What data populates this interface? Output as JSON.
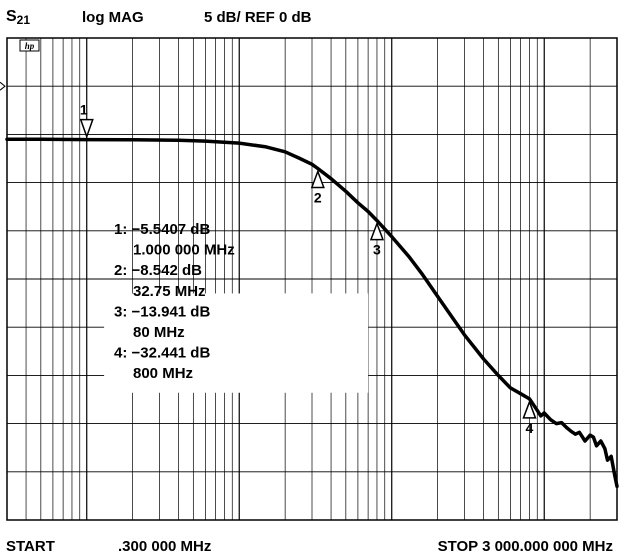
{
  "header": {
    "channel_main": "S",
    "channel_sub": "21",
    "format": "log MAG",
    "scale": "5 dB/  REF 0 dB",
    "instrument_logo": "hp"
  },
  "footer": {
    "start_label": "START",
    "start_freq": ".300 000 MHz",
    "stop": "STOP 3 000.000 000 MHz"
  },
  "chart_data": {
    "type": "line",
    "title": "",
    "xlabel": "",
    "ylabel": "",
    "x_scale": "log",
    "x_unit": "MHz",
    "y_unit": "dB",
    "xlim": [
      0.3,
      3000
    ],
    "ylim": [
      -45,
      5
    ],
    "reference_db": 0,
    "db_per_div": 5,
    "grid": true,
    "series": [
      {
        "x": [
          0.3,
          0.5,
          1,
          2,
          4,
          6,
          10,
          15,
          20,
          25,
          30,
          32.75,
          40,
          50,
          60,
          70,
          80,
          100,
          130,
          160,
          200,
          250,
          300,
          400,
          500,
          600,
          700,
          800,
          880,
          950,
          1000,
          1100,
          1200,
          1300,
          1400,
          1500,
          1600,
          1700,
          1850,
          2000,
          2100,
          2200,
          2350,
          2500,
          2600,
          2750,
          2900,
          3000
        ],
        "y": [
          -5.5,
          -5.5,
          -5.54,
          -5.56,
          -5.6,
          -5.7,
          -5.9,
          -6.3,
          -6.8,
          -7.5,
          -8.1,
          -8.54,
          -9.6,
          -10.9,
          -12.1,
          -13.0,
          -13.94,
          -15.6,
          -17.7,
          -19.6,
          -21.8,
          -24.0,
          -25.8,
          -28.3,
          -30.0,
          -31.3,
          -31.9,
          -32.44,
          -33.4,
          -34.2,
          -33.9,
          -34.6,
          -35.0,
          -34.9,
          -35.4,
          -35.8,
          -36.1,
          -35.9,
          -36.8,
          -36.2,
          -36.4,
          -37.3,
          -36.8,
          -37.6,
          -38.8,
          -38.4,
          -40.4,
          -41.5
        ]
      }
    ],
    "markers": [
      {
        "id": "1",
        "freq_mhz": 1.0,
        "db": -5.5407,
        "pointer": "down",
        "line1": "1: −5.5407 dB",
        "line2": "1.000 000 MHz"
      },
      {
        "id": "2",
        "freq_mhz": 32.75,
        "db": -8.542,
        "pointer": "up",
        "line1": "2: −8.542 dB",
        "line2": "32.75 MHz"
      },
      {
        "id": "3",
        "freq_mhz": 80,
        "db": -13.941,
        "pointer": "up",
        "line1": "3: −13.941 dB",
        "line2": "80 MHz"
      },
      {
        "id": "4",
        "freq_mhz": 800,
        "db": -32.441,
        "pointer": "up",
        "line1": "4: −32.441 dB",
        "line2": "800 MHz"
      }
    ],
    "colors": {
      "trace": "#000000",
      "grid": "#000000",
      "background": "#ffffff"
    }
  }
}
